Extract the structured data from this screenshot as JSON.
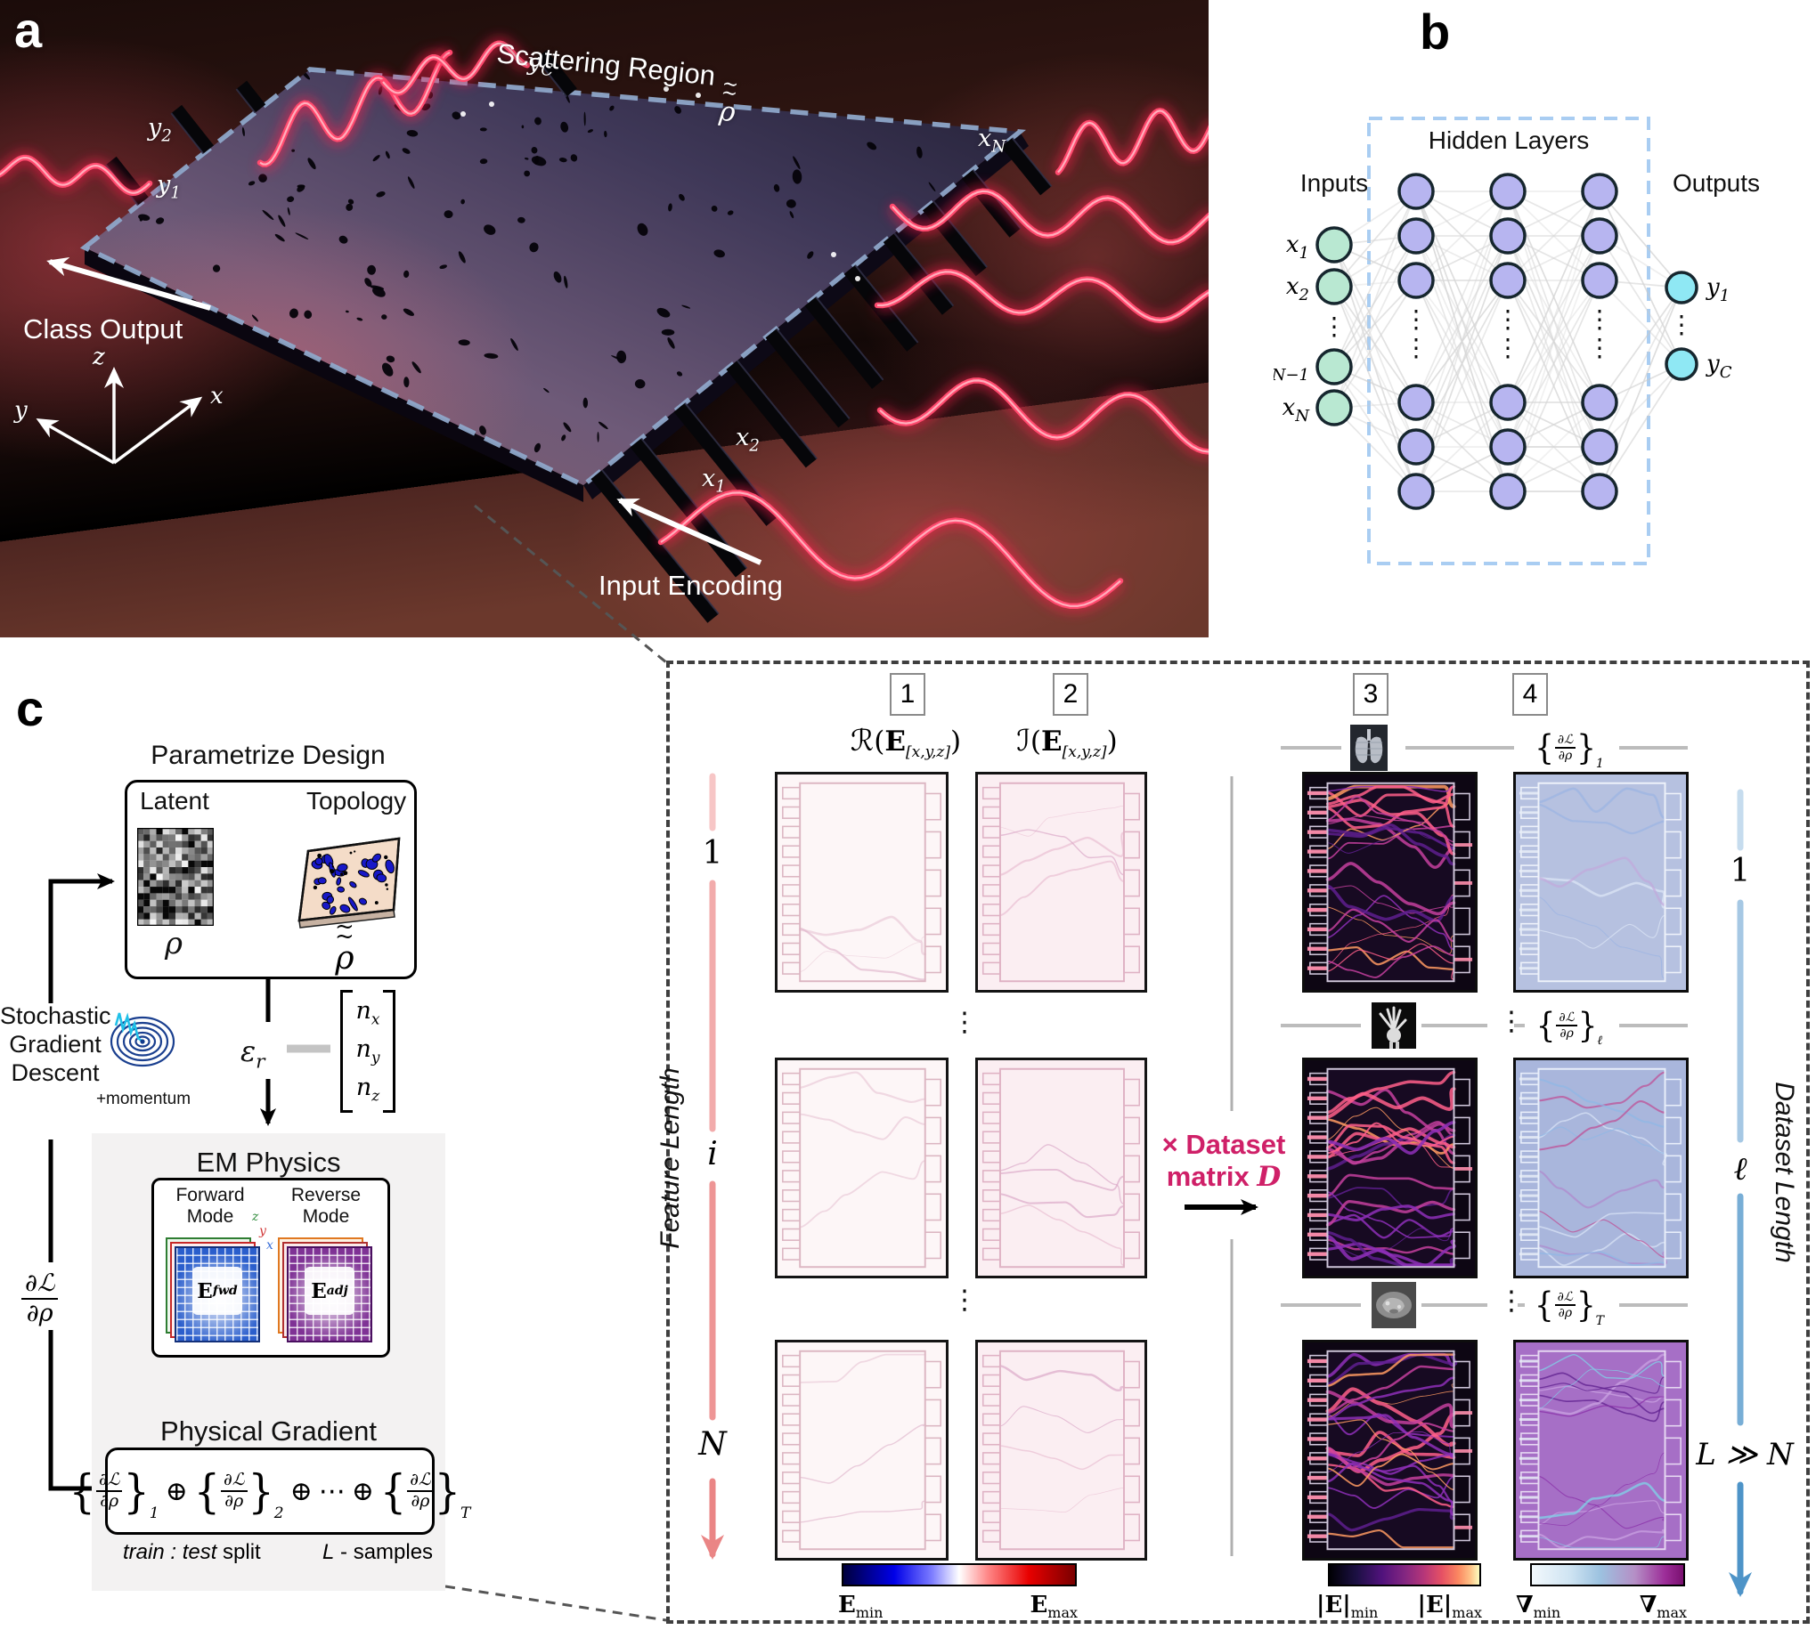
{
  "colors": {
    "wave_red": "#ff2d55",
    "dashed_blue": "#8ea6c9",
    "accent_crimson": "#cf2068",
    "nn_input": "#b9e8d2",
    "nn_hidden": "#b7b5f0",
    "nn_output": "#8fe8f4",
    "nn_box": "#a9cdf2",
    "axis_pink": "#ea8585",
    "axis_blue": "#4e94c8",
    "em_fwd": "#2458c8",
    "em_adj": "#7b2d8e"
  },
  "panel_a": {
    "tag": "a",
    "scattering_prefix": "Scattering Region",
    "rho": "ρ",
    "tilde": "~",
    "class_output": "Class Output",
    "input_encoding": "Input Encoding",
    "axis_x": "x",
    "axis_y": "y",
    "axis_z": "z",
    "y1m": "y",
    "y1s": "1",
    "y2m": "y",
    "y2s": "2",
    "yCm": "y",
    "yCs": "C",
    "x1m": "x",
    "x1s": "1",
    "x2m": "x",
    "x2s": "2",
    "xNm": "x",
    "xNs": "N"
  },
  "panel_b": {
    "tag": "b",
    "inputs": "Inputs",
    "hidden": "Hidden Layers",
    "outputs": "Outputs",
    "input_labels": [
      [
        "x",
        "1"
      ],
      [
        "x",
        "2"
      ],
      [
        "x",
        "N−1"
      ],
      [
        "x",
        "N"
      ]
    ],
    "output_labels": [
      [
        "y",
        "1"
      ],
      [
        "y",
        "C"
      ]
    ]
  },
  "panel_c": {
    "tag": "c",
    "parametrize_title": "Parametrize Design",
    "latent": "Latent",
    "topology": "Topology",
    "rho": "ρ",
    "tilde": "~",
    "sgd1": "Stochastic",
    "sgd2": "Gradient",
    "sgd3": "Descent",
    "momentum": "+momentum",
    "eps_m": "ε",
    "eps_s": "r",
    "n1m": "n",
    "n1s": "x",
    "n2m": "n",
    "n2s": "y",
    "n3m": "n",
    "n3s": "z",
    "em_title": "EM Physics",
    "forward": "Forward Mode",
    "reverse": "Reverse Mode",
    "efwd_m": "E",
    "efwd_s": "fwd",
    "eadj_m": "E",
    "eadj_s": "adj",
    "mini_z": "z",
    "mini_y": "y",
    "mini_x": "x",
    "dl_num": "∂ℒ",
    "dl_den": "∂ρ",
    "pg_title": "Physical Gradient",
    "pg_num": "∂ℒ",
    "pg_den": "∂ρ",
    "pg_subs": [
      "1",
      "2",
      "T"
    ],
    "oplus": "⊕",
    "cdots": "⋯",
    "split_italic": "train : test",
    "split_rest": " split",
    "samples_italic": "L",
    "samples_rest": " - samples"
  },
  "pipeline": {
    "headers": [
      "1",
      "2",
      "3",
      "4"
    ],
    "col1_func": "ℛ",
    "col2_func": "ℐ",
    "arg_open": "(",
    "arg_E": "E",
    "arg_sub": "[x,y,z]",
    "arg_close": ")",
    "feature_title": "Feature Length",
    "feature_ticks": [
      "1",
      "i",
      "N"
    ],
    "dataset_title": "Dataset Length",
    "dataset_ticks": [
      "1",
      "ℓ",
      "L ≫ N"
    ],
    "matrix_line1": "× Dataset",
    "matrix_line2": "matrix",
    "matrix_D": "D",
    "sep_num": "∂ℒ",
    "sep_den": "∂ρ",
    "sep_subs": [
      "1",
      "ℓ",
      "T"
    ],
    "vdots": "⋮",
    "cb1_min_m": "E",
    "cb1_min_s": "min",
    "cb1_max_m": "E",
    "cb1_max_s": "max",
    "cb2_min_m": "|E|",
    "cb2_min_s": "min",
    "cb2_max_m": "|E|",
    "cb2_max_s": "max",
    "cb3_min_m": "∇",
    "cb3_min_s": "min",
    "cb3_max_m": "∇",
    "cb3_max_s": "max",
    "map_palette": {
      "col1": {
        "bg": "#fdf6f7",
        "ink": "#dcb6c2",
        "strands": [
          "#e8c4d4",
          "#ddb0c8"
        ],
        "n": 3,
        "op": 0.6
      },
      "col2": {
        "bg": "#fbeef2",
        "ink": "#dfb2c4",
        "strands": [
          "#e8bcd0",
          "#d8a4c4"
        ],
        "n": 4,
        "op": 0.65
      },
      "col3": {
        "bg": "#0d0613",
        "ink": "#cfc6da",
        "strands": [
          "#5e1f8e",
          "#8e2fb8",
          "#c43f9e",
          "#ff5f8a",
          "#ff9a62"
        ],
        "n": 24,
        "op": 0.85
      },
      "col4r1": {
        "bg": "#b6c1e0",
        "ink": "#eef2fa",
        "strands": [
          "#dee7f6",
          "#c2a8dc",
          "#9bb4e2"
        ],
        "n": 6,
        "op": 0.7
      },
      "col4r2": {
        "bg": "#a9b6dc",
        "ink": "#e8eefa",
        "strands": [
          "#dce6f6",
          "#b088cc",
          "#8fb8e6",
          "#c04a92"
        ],
        "n": 11,
        "op": 0.7
      },
      "col4r3": {
        "bg": "#a66fc6",
        "ink": "#e6d8f2",
        "strands": [
          "#caa2e2",
          "#8a2fa8",
          "#7fd4e8",
          "#5e1f8e"
        ],
        "n": 14,
        "op": 0.75
      }
    }
  }
}
